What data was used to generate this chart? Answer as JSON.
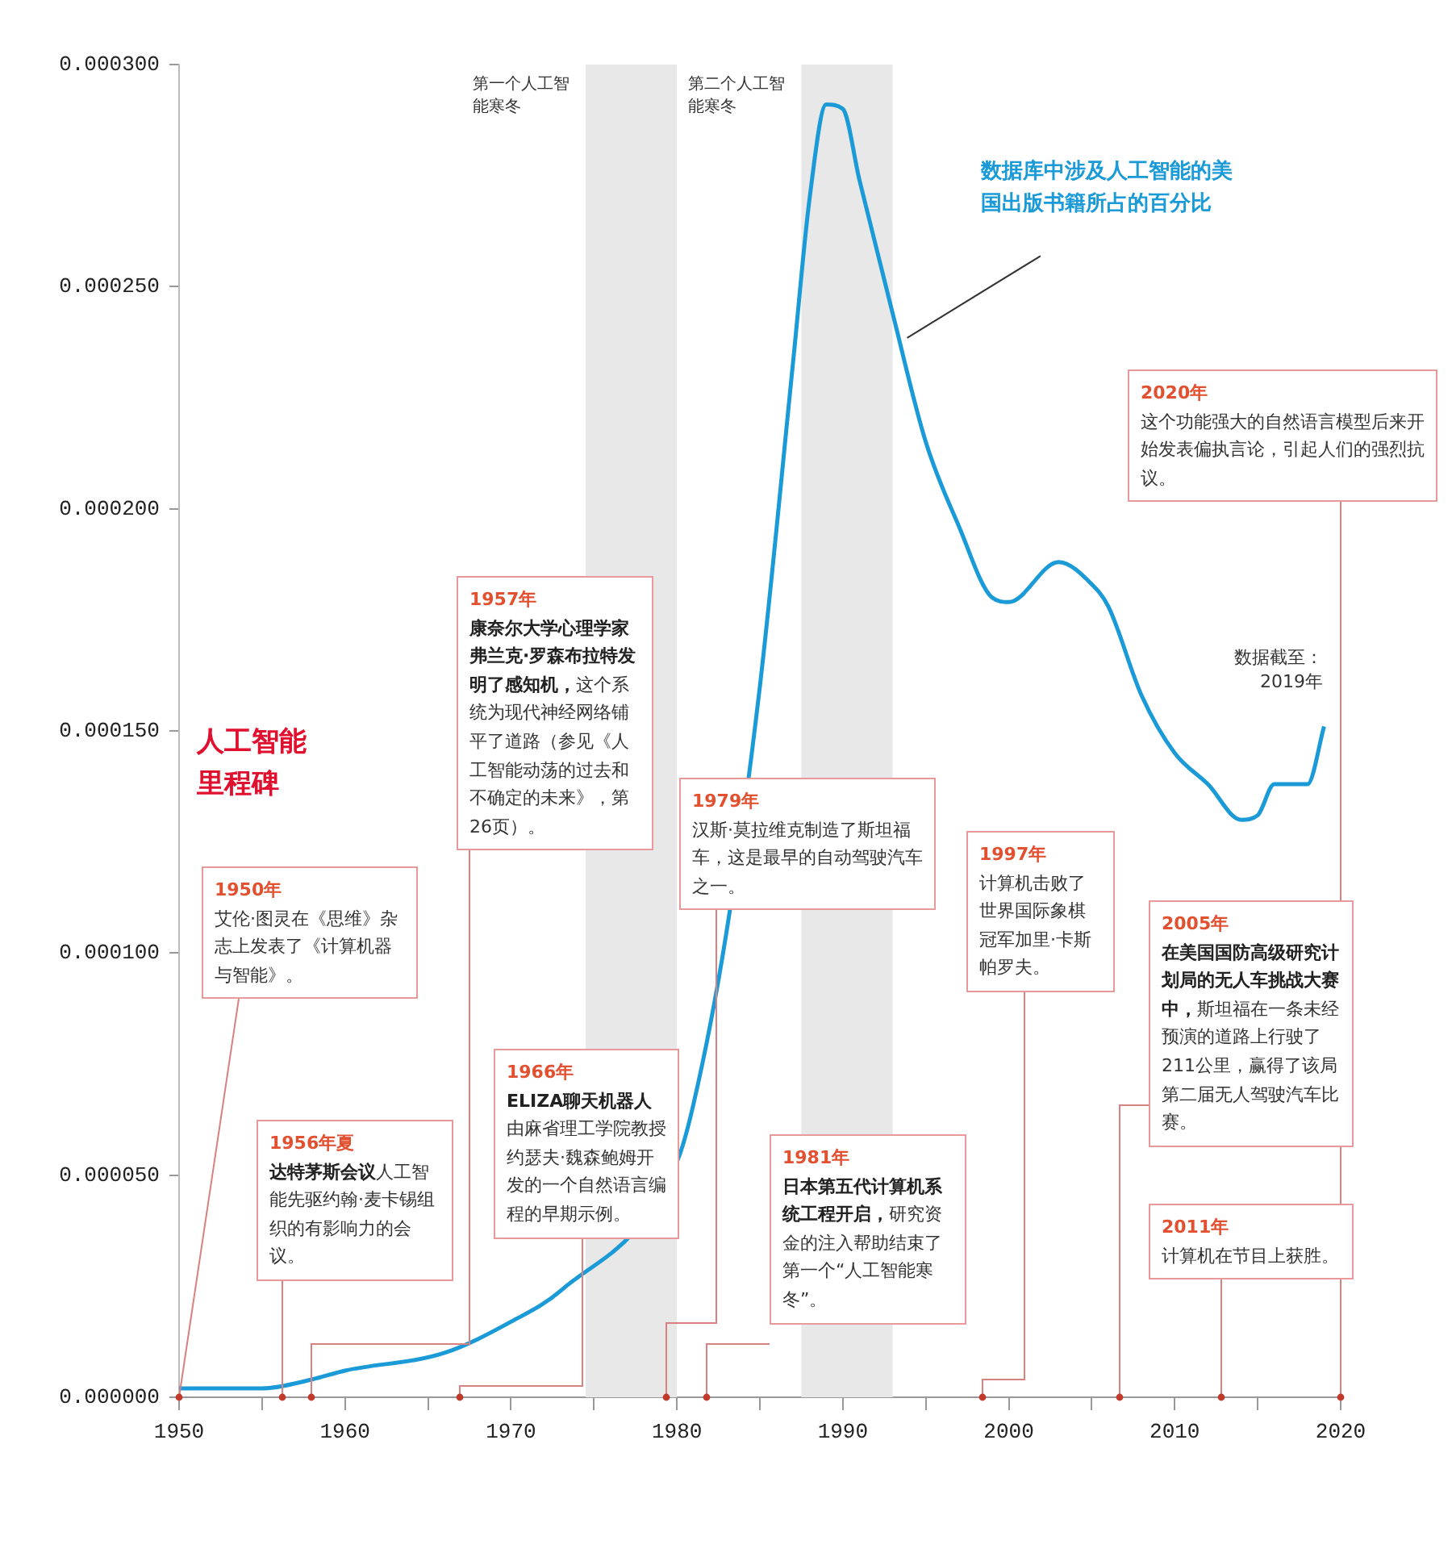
{
  "chart_data": {
    "type": "line",
    "title": "人工智能里程碑",
    "x": [
      1950,
      1955,
      1958,
      1960,
      1966,
      1970,
      1973,
      1980,
      1981,
      1983,
      1985,
      1987,
      1988,
      1989,
      1990,
      1991,
      1993,
      1995,
      1997,
      1999,
      2000,
      2003,
      2005,
      2006,
      2008,
      2010,
      2012,
      2014,
      2015,
      2016,
      2018,
      2019
    ],
    "series": [
      {
        "name": "数据库中涉及人工智能的美国出版书籍所占的百分比",
        "color": "#1a9ad6",
        "values": [
          2e-06,
          2e-06,
          4e-06,
          6e-06,
          1e-05,
          1.7e-05,
          2.4e-05,
          5.3e-05,
          6.6e-05,
          0.000105,
          0.00016,
          0.000233,
          0.00027,
          0.000291,
          0.00029,
          0.000274,
          0.000244,
          0.000215,
          0.000196,
          0.00018,
          0.000179,
          0.000188,
          0.000183,
          0.000178,
          0.000158,
          0.000145,
          0.000138,
          0.00013,
          0.000131,
          0.000138,
          0.000138,
          0.000151
        ]
      }
    ],
    "xlim": [
      1950,
      2020
    ],
    "xticks": [
      1950,
      {
        "value": 1955,
        "label": null
      },
      1960,
      {
        "value": 1965,
        "label": null
      },
      1970,
      {
        "value": 1975,
        "label": null
      },
      1980,
      {
        "value": 1985,
        "label": null
      },
      1990,
      {
        "value": 1995,
        "label": null
      },
      2000,
      {
        "value": 2005,
        "label": null
      },
      2010,
      {
        "value": 2015,
        "label": null
      },
      2020
    ],
    "ylim": [
      0,
      0.0003
    ],
    "yticks": [
      {
        "value": 0,
        "label": "0.000000"
      },
      {
        "value": 5e-05,
        "label": "0.000050"
      },
      {
        "value": 0.0001,
        "label": "0.000100"
      },
      {
        "value": 0.00015,
        "label": "0.000150"
      },
      {
        "value": 0.0002,
        "label": "0.000200"
      },
      {
        "value": 0.00025,
        "label": "0.000250"
      },
      {
        "value": 0.0003,
        "label": "0.000300"
      }
    ],
    "bands": [
      {
        "axis": "x",
        "from": 1974.5,
        "to": 1980,
        "label": "第一个人工智能寒冬",
        "color": "#e8e8e8"
      },
      {
        "axis": "x",
        "from": 1987.5,
        "to": 1993,
        "label": "第二个人工智能寒冬",
        "color": "#e8e8e8"
      }
    ],
    "annotations": [
      "1950年",
      "艾伦·图灵在《思维》杂志上发表了《计算机器与智能》。",
      "1956年夏",
      "达特茅斯会议",
      "人工智能先驱约翰·麦卡锡组织的有影响力的会议。",
      "1957年",
      "康奈尔大学心理学家弗兰克·罗森布拉特发明了感知机，",
      "这个系统为现代神经网络铺平了道路（参见《人工智能动荡的过去和不确定的未来》，第26页）。",
      "1966年",
      "ELIZA聊天机器人",
      "由麻省理工学院教授约瑟夫·魏森鲍姆开发的一个自然语言编程的早期示例。",
      "1979年",
      "汉斯·莫拉维克制造了斯坦福车，这是最早的自动驾驶汽车之一。",
      "1981年",
      "日本第五代计算机系统工程开启，",
      "研究资金的注入帮助结束了第一个“人工智能寒冬”。",
      "1997年",
      "计算机击败了世界国际象棋冠军加里·卡斯帕罗夫。",
      "2005年",
      "在美国国防高级研究计划局的无人车挑战大赛中，",
      "斯坦福在一条未经预演的道路上行驶了211公里，赢得了该局第二届无人驾驶汽车比赛。",
      "2011年",
      "计算机在节目上获胜。",
      "2020年",
      "这个功能强大的自然语言模型后来开始发表偏执言论，引起人们的强烈抗议。",
      "数据截至：2019年"
    ],
    "grid": false,
    "legend": false,
    "marker": "none",
    "line_style": "solid"
  }
}
